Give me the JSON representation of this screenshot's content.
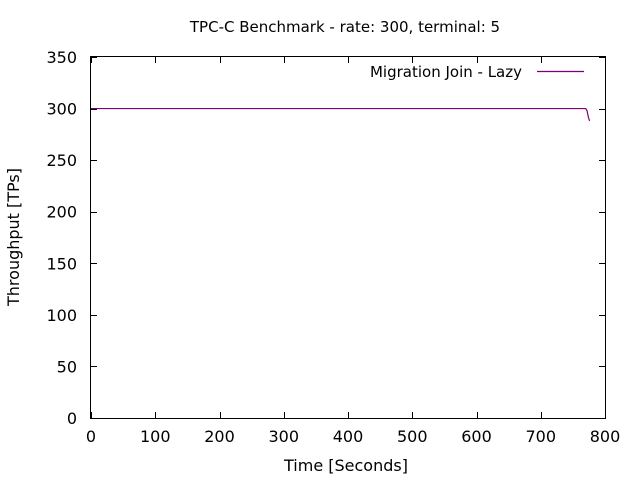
{
  "chart_data": {
    "type": "line",
    "title": "TPC-C Benchmark - rate: 300, terminal: 5",
    "xlabel": "Time [Seconds]",
    "ylabel": "Throughput [TPs]",
    "xlim": [
      0,
      800
    ],
    "ylim": [
      0,
      350
    ],
    "xticks": [
      0,
      100,
      200,
      300,
      400,
      500,
      600,
      700,
      800
    ],
    "yticks": [
      0,
      50,
      100,
      150,
      200,
      250,
      300,
      350
    ],
    "grid": false,
    "legend_position": "top-right",
    "series": [
      {
        "name": "Migration Join - Lazy",
        "color": "#7b0080",
        "x": [
          0,
          100,
          200,
          300,
          400,
          500,
          600,
          700,
          765,
          770,
          772,
          774,
          776
        ],
        "y": [
          300,
          300,
          300,
          300,
          300,
          300,
          300,
          300,
          300,
          300,
          298,
          292,
          288
        ]
      }
    ]
  }
}
